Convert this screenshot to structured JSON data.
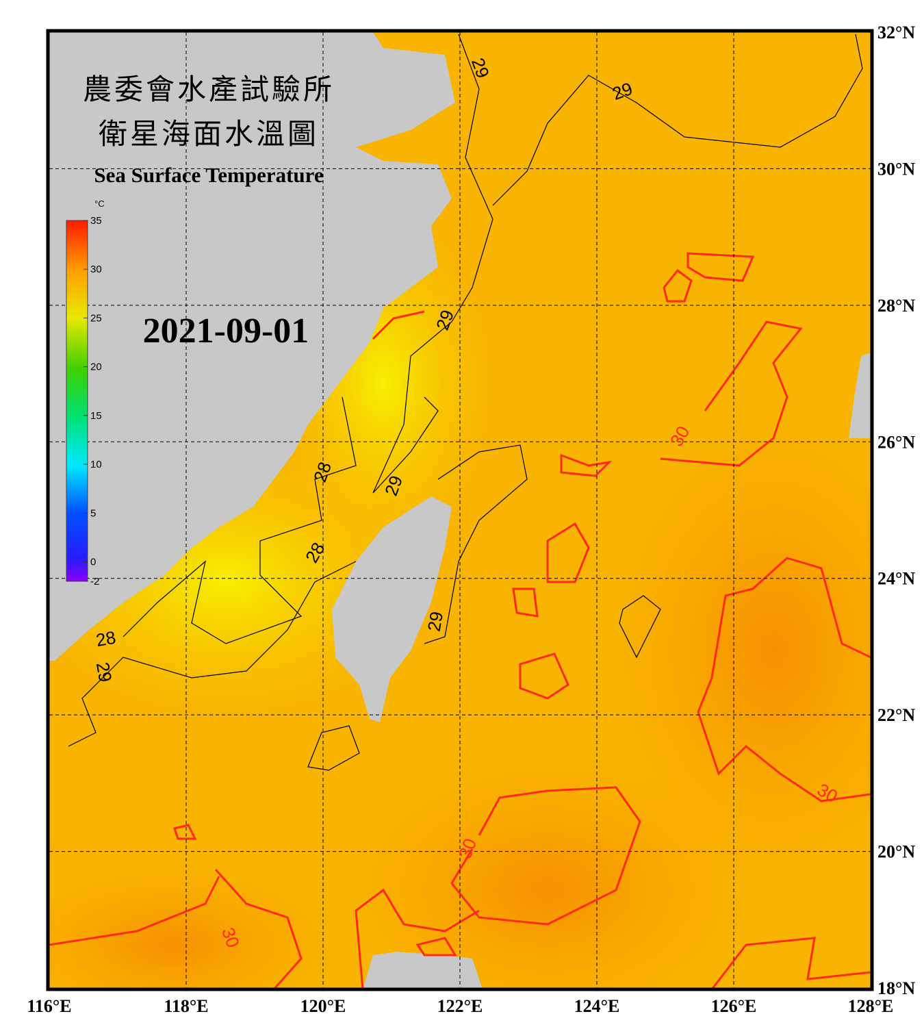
{
  "map": {
    "title_zh_1": "農委會水產試驗所",
    "title_zh_2": "衛星海面水溫圖",
    "title_en": "Sea Surface Temperature",
    "date": "2021-09-01",
    "colorbar": {
      "unit": "°C",
      "lim": [
        -2,
        35
      ],
      "ticks": [
        35,
        30,
        25,
        20,
        15,
        10,
        5,
        0,
        -2
      ]
    },
    "lon_ticks": [
      {
        "value": 116,
        "label": "116°E"
      },
      {
        "value": 118,
        "label": "118°E"
      },
      {
        "value": 120,
        "label": "120°E"
      },
      {
        "value": 122,
        "label": "122°E"
      },
      {
        "value": 124,
        "label": "124°E"
      },
      {
        "value": 126,
        "label": "126°E"
      },
      {
        "value": 128,
        "label": "128°E"
      }
    ],
    "lat_ticks": [
      {
        "value": 32,
        "label": "32°N"
      },
      {
        "value": 30,
        "label": "30°N"
      },
      {
        "value": 28,
        "label": "28°N"
      },
      {
        "value": 26,
        "label": "26°N"
      },
      {
        "value": 24,
        "label": "24°N"
      },
      {
        "value": 22,
        "label": "22°N"
      },
      {
        "value": 20,
        "label": "20°N"
      },
      {
        "value": 18,
        "label": "18°N"
      }
    ],
    "lonlim": [
      116,
      128
    ],
    "latlim": [
      18,
      32
    ],
    "contour_labels": [
      29,
      29,
      29,
      28,
      29,
      28,
      28,
      29,
      29,
      30,
      30,
      30,
      30
    ]
  }
}
